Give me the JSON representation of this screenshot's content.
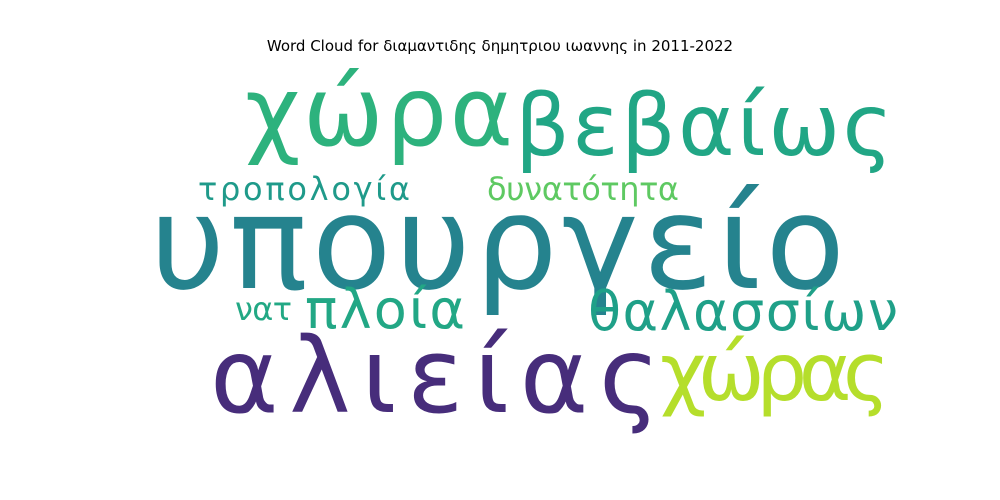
{
  "chart_data": {
    "type": "wordcloud",
    "title": "Word Cloud for διαμαντιδης δημητριου ιωαννης in 2011-2022",
    "words": [
      {
        "text": "υπουργείο",
        "weight": 1.0,
        "color": "#25838e"
      },
      {
        "text": "αλιείας",
        "weight": 0.78,
        "color": "#472d7b"
      },
      {
        "text": "χώρα",
        "weight": 0.66,
        "color": "#2db27d"
      },
      {
        "text": "βεβαίως",
        "weight": 0.55,
        "color": "#21a685"
      },
      {
        "text": "χώρας",
        "weight": 0.52,
        "color": "#b5de2b"
      },
      {
        "text": "θαλασσίων",
        "weight": 0.4,
        "color": "#1fa088"
      },
      {
        "text": "πλοία",
        "weight": 0.4,
        "color": "#22a785"
      },
      {
        "text": "τροπολογία",
        "weight": 0.25,
        "color": "#1f9a8a"
      },
      {
        "text": "δυνατότητα",
        "weight": 0.25,
        "color": "#5ec962"
      },
      {
        "text": "νατ",
        "weight": 0.2,
        "color": "#22a884"
      }
    ]
  }
}
